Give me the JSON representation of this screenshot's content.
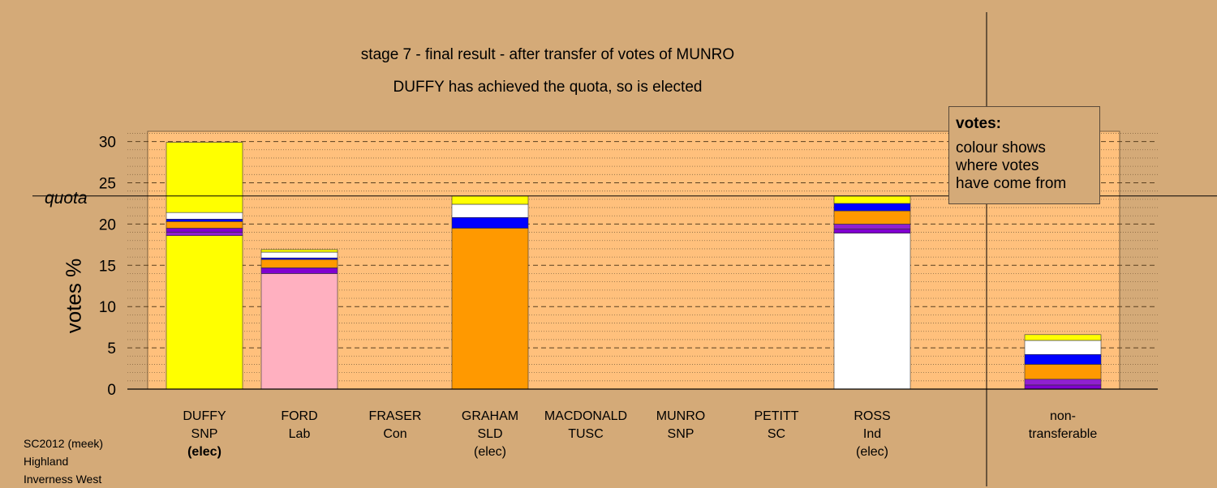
{
  "title_line1": "stage 7 - final result - after transfer of votes of MUNRO",
  "title_line2": "DUFFY has achieved the quota, so is elected",
  "ylabel": "votes %",
  "quota_label": "quota",
  "legend": {
    "heading": "votes:",
    "line1": "colour shows",
    "line2": "where votes",
    "line3": "have come from"
  },
  "footer": {
    "line1": "SC2012 (meek)",
    "line2": "Highland",
    "line3": "Inverness West"
  },
  "colors": {
    "background": "#D4AA78",
    "plot_bg": "#FFC07C",
    "SNP": "#FFFF00",
    "Lab": "#FFB0C0",
    "SLD": "#FF9900",
    "Ind": "#FFFFFF",
    "Con": "#0000FF",
    "TUSC": "#8000D0",
    "SC": "#800080"
  },
  "chart_data": {
    "type": "bar",
    "stacked": true,
    "ylim": [
      0,
      31
    ],
    "yticks": [
      0,
      5,
      10,
      15,
      20,
      25,
      30
    ],
    "quota": 23.4,
    "categories": [
      {
        "name": "DUFFY",
        "party": "SNP",
        "status": "(elec)",
        "bold_status": true
      },
      {
        "name": "FORD",
        "party": "Lab",
        "status": ""
      },
      {
        "name": "FRASER",
        "party": "Con",
        "status": ""
      },
      {
        "name": "GRAHAM",
        "party": "SLD",
        "status": "(elec)"
      },
      {
        "name": "MACDONALD",
        "party": "TUSC",
        "status": ""
      },
      {
        "name": "MUNRO",
        "party": "SNP",
        "status": ""
      },
      {
        "name": "PETITT",
        "party": "SC",
        "status": ""
      },
      {
        "name": "ROSS",
        "party": "Ind",
        "status": "(elec)"
      },
      {
        "name": "non-",
        "party": "transferable",
        "status": ""
      }
    ],
    "bars": [
      {
        "category": "DUFFY",
        "segments": [
          {
            "color": "#FFFF00",
            "value": 18.6
          },
          {
            "color": "#9020D0",
            "value": 0.4
          },
          {
            "color": "#8000D0",
            "value": 0.5
          },
          {
            "color": "#FF9900",
            "value": 0.8
          },
          {
            "color": "#0000FF",
            "value": 0.3
          },
          {
            "color": "#FFFFFF",
            "value": 0.8
          },
          {
            "color": "#FFFF00",
            "value": 8.5
          }
        ]
      },
      {
        "category": "FORD",
        "segments": [
          {
            "color": "#FFB0C0",
            "value": 14.0
          },
          {
            "color": "#8000D0",
            "value": 0.7
          },
          {
            "color": "#FF9900",
            "value": 1.0
          },
          {
            "color": "#0000FF",
            "value": 0.2
          },
          {
            "color": "#FFFFFF",
            "value": 0.7
          },
          {
            "color": "#FFFF00",
            "value": 0.3
          }
        ]
      },
      {
        "category": "GRAHAM",
        "segments": [
          {
            "color": "#FF9900",
            "value": 19.5
          },
          {
            "color": "#0000FF",
            "value": 1.3
          },
          {
            "color": "#FFFFFF",
            "value": 1.6
          },
          {
            "color": "#FFFF00",
            "value": 1.0
          }
        ]
      },
      {
        "category": "ROSS",
        "segments": [
          {
            "color": "#FFFFFF",
            "value": 18.9
          },
          {
            "color": "#8000D0",
            "value": 0.5
          },
          {
            "color": "#9020D0",
            "value": 0.6
          },
          {
            "color": "#FF9900",
            "value": 1.6
          },
          {
            "color": "#0000FF",
            "value": 0.9
          },
          {
            "color": "#FFFF00",
            "value": 0.9
          }
        ]
      },
      {
        "category": "non-",
        "segments": [
          {
            "color": "#8000D0",
            "value": 0.5
          },
          {
            "color": "#9020D0",
            "value": 0.7
          },
          {
            "color": "#FF9900",
            "value": 1.8
          },
          {
            "color": "#0000FF",
            "value": 1.2
          },
          {
            "color": "#FFFFFF",
            "value": 1.7
          },
          {
            "color": "#FFFF00",
            "value": 0.7
          }
        ]
      }
    ]
  }
}
